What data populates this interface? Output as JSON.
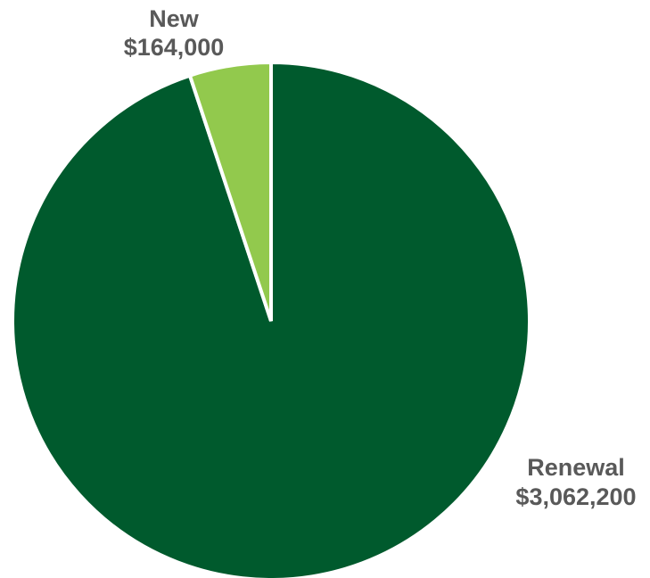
{
  "chart_data": {
    "type": "pie",
    "title": "",
    "slices": [
      {
        "label": "Renewal",
        "value_label": "$3,062,200",
        "value": 3062200,
        "color": "#005a2d"
      },
      {
        "label": "New",
        "value_label": "$164,000",
        "value": 164000,
        "color": "#92c94d"
      }
    ],
    "legend": "none"
  }
}
